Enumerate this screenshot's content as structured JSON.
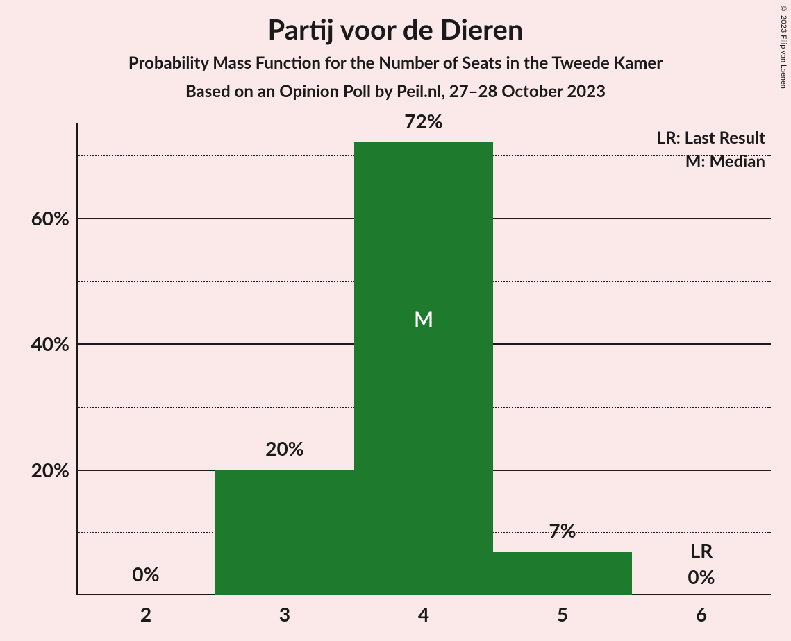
{
  "title": "Partij voor de Dieren",
  "subtitle": "Probability Mass Function for the Number of Seats in the Tweede Kamer",
  "subtitle2": "Based on an Opinion Poll by Peil.nl, 27–28 October 2023",
  "copyright": "© 2023 Filip van Laenen",
  "legend": {
    "lr": "LR: Last Result",
    "m": "M: Median"
  },
  "chart": {
    "type": "bar",
    "background_color": "#fbe9e9",
    "bar_color": "#1e7b2d",
    "axis_color": "#1a1a1a",
    "grid_major_color": "#1a1a1a",
    "grid_minor_color": "#1a1a1a",
    "text_color": "#1a1a1a",
    "median_text_color": "#ffffff",
    "ymax": 75,
    "yticks_major": [
      20,
      40,
      60
    ],
    "yticks_minor": [
      10,
      30,
      50,
      70
    ],
    "ytick_labels": {
      "20": "20%",
      "40": "40%",
      "60": "60%"
    },
    "categories": [
      "2",
      "3",
      "4",
      "5",
      "6"
    ],
    "values": [
      0,
      20,
      72,
      7,
      0
    ],
    "value_labels": [
      "0%",
      "20%",
      "72%",
      "7%",
      "0%"
    ],
    "median_index": 2,
    "median_marker": "M",
    "lr_index": 4,
    "lr_marker": "LR",
    "bar_width_ratio": 1.0,
    "title_fontsize": 40,
    "subtitle_fontsize": 24,
    "tick_fontsize": 28,
    "label_fontsize": 28,
    "legend_fontsize": 24
  }
}
